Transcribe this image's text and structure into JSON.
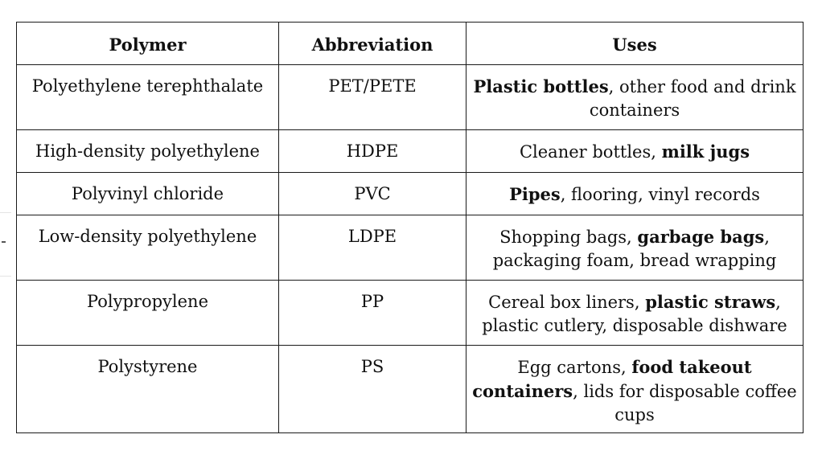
{
  "table": {
    "headers": [
      "Polymer",
      "Abbreviation",
      "Uses"
    ],
    "rows": [
      {
        "polymer": "Polyethylene terephthalate",
        "abbreviation": "PET/PETE",
        "uses": [
          {
            "text": "Plastic bottles",
            "bold": true
          },
          {
            "text": ", other food and drink containers",
            "bold": false
          }
        ]
      },
      {
        "polymer": "High-density polyethylene",
        "abbreviation": "HDPE",
        "uses": [
          {
            "text": "Cleaner bottles, ",
            "bold": false
          },
          {
            "text": "milk jugs",
            "bold": true
          }
        ]
      },
      {
        "polymer": "Polyvinyl chloride",
        "abbreviation": "PVC",
        "uses": [
          {
            "text": "Pipes",
            "bold": true
          },
          {
            "text": ", flooring, vinyl records",
            "bold": false
          }
        ]
      },
      {
        "polymer": "Low-density polyethylene",
        "abbreviation": "LDPE",
        "uses": [
          {
            "text": "Shopping bags, ",
            "bold": false
          },
          {
            "text": "garbage bags",
            "bold": true
          },
          {
            "text": ", packaging foam, bread wrapping",
            "bold": false
          }
        ]
      },
      {
        "polymer": "Polypropylene",
        "abbreviation": "PP",
        "uses": [
          {
            "text": "Cereal box liners, ",
            "bold": false
          },
          {
            "text": "plastic straws",
            "bold": true
          },
          {
            "text": ", plastic cutlery, disposable dishware",
            "bold": false
          }
        ]
      },
      {
        "polymer": "Polystyrene",
        "abbreviation": "PS",
        "uses": [
          {
            "text": "Egg cartons, ",
            "bold": false
          },
          {
            "text": "food takeout containers",
            "bold": true
          },
          {
            "text": ", lids for disposable coffee cups",
            "bold": false
          }
        ]
      }
    ]
  }
}
